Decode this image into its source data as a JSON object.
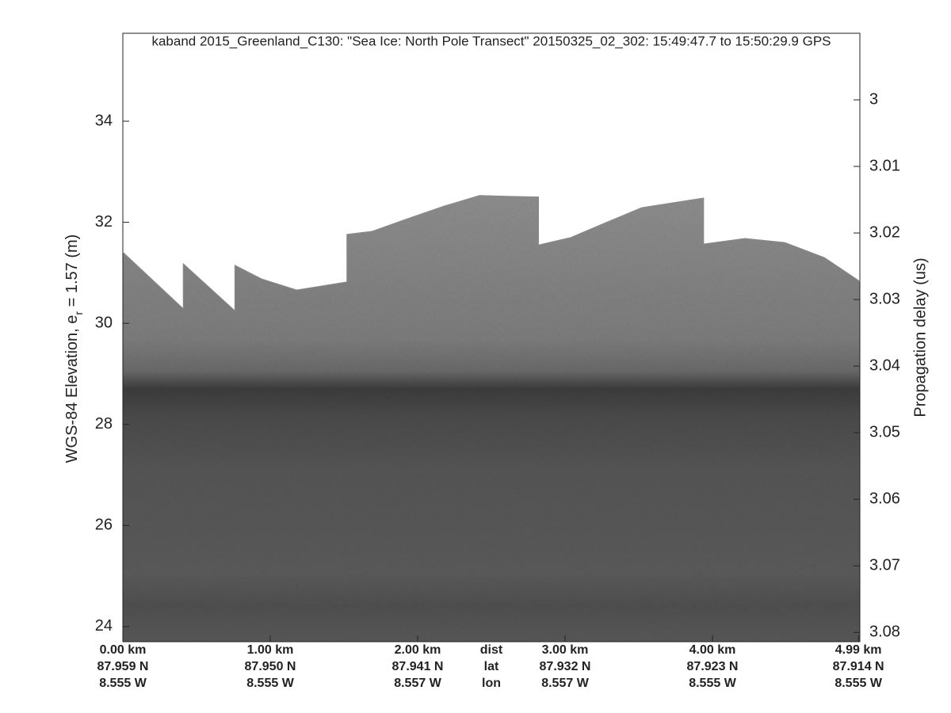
{
  "chart_data": {
    "type": "echogram",
    "title": "kaband 2015_Greenland_C130: \"Sea Ice: North Pole Transect\"  20150325_02_302: 15:49:47.7 to 15:50:29.9 GPS",
    "ylabel": [
      "WGS-84 Elevation, e",
      "r",
      " = 1.57 (m)"
    ],
    "y2label": "Propagation delay (us)",
    "x": [
      0,
      0.41,
      0.41,
      0.76,
      0.76,
      0.94,
      1.18,
      1.52,
      1.52,
      1.69,
      1.96,
      2.18,
      2.42,
      2.66,
      2.82,
      2.82,
      3.04,
      3.25,
      3.52,
      3.94,
      3.94,
      4.22,
      4.49,
      4.76,
      5.0
    ],
    "values": [
      31.41,
      30.29,
      31.18,
      30.25,
      31.15,
      30.88,
      30.66,
      30.82,
      31.76,
      31.82,
      32.1,
      32.32,
      32.53,
      32.51,
      32.5,
      31.55,
      31.7,
      31.96,
      32.29,
      32.48,
      31.57,
      31.68,
      31.6,
      31.3,
      30.83
    ],
    "xlim": [
      0,
      5.0
    ],
    "xticks": [
      {
        "value": 0,
        "label": "0.00 km"
      },
      {
        "value": 1,
        "label": "1.00 km"
      },
      {
        "value": 2,
        "label": "2.00 km"
      },
      {
        "value": 3,
        "label": "3.00 km"
      },
      {
        "value": 4,
        "label": "4.00 km"
      },
      {
        "value": 4.99,
        "label": "4.99 km"
      }
    ],
    "xtick_lat": [
      "87.959 N",
      "87.950 N",
      "87.941 N",
      "87.932 N",
      "87.923 N",
      "87.914 N"
    ],
    "xtick_lon": [
      "8.555 W",
      "8.555 W",
      "8.557 W",
      "8.557 W",
      "8.555 W",
      "8.555 W"
    ],
    "x_row_labels": [
      "dist",
      "lat",
      "lon"
    ],
    "ylim": [
      23.7,
      35.74
    ],
    "yticks": [
      24,
      26,
      28,
      30,
      32,
      34
    ],
    "y2lim": [
      3.0814,
      2.99
    ],
    "y2ticks": [
      3,
      3.01,
      3.02,
      3.03,
      3.04,
      3.05,
      3.06,
      3.07,
      3.08
    ]
  }
}
